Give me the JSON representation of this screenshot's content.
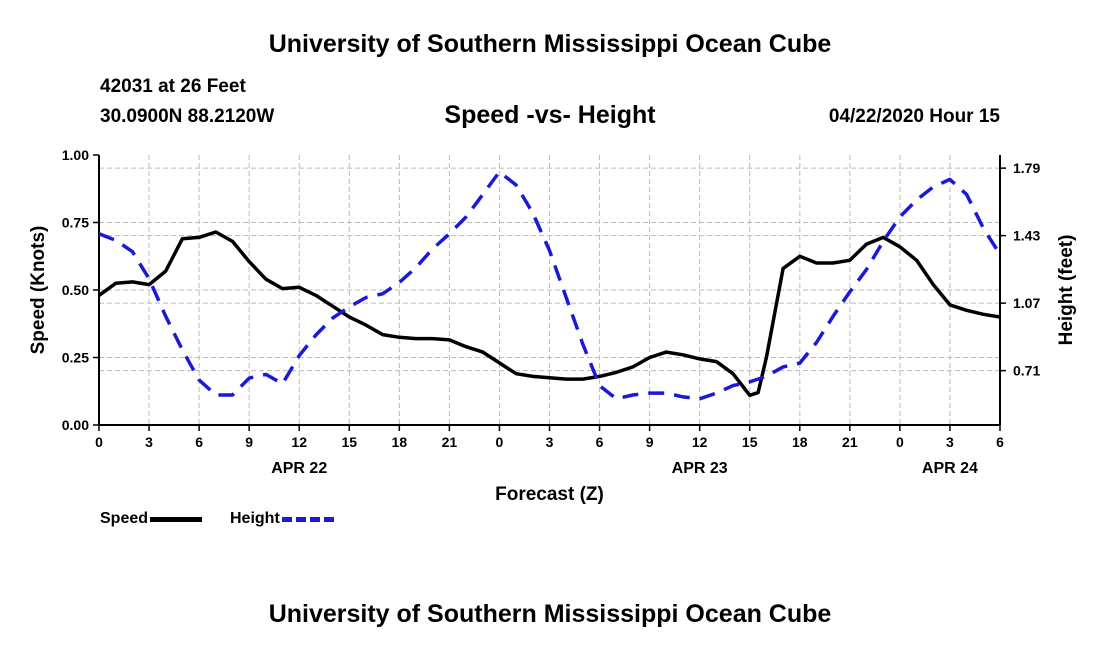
{
  "header": {
    "title": "University of Southern Mississippi Ocean Cube",
    "station": "42031 at 26 Feet",
    "coords": "30.0900N 88.2120W",
    "subtitle": "Speed -vs- Height",
    "datetime": "04/22/2020 Hour 15"
  },
  "footer": {
    "title": "University of Southern Mississippi Ocean Cube"
  },
  "legend": {
    "speed_label": "Speed",
    "height_label": "Height"
  },
  "colors": {
    "speed": "#000000",
    "height": "#1a1ad6",
    "grid": "#bbbbbb"
  },
  "chart_data": {
    "type": "line",
    "title": "Speed -vs- Height",
    "xlabel": "Forecast (Z)",
    "ylabel": "Speed (Knots)",
    "y2label": "Height (feet)",
    "xlim": [
      0,
      54
    ],
    "ylim": [
      0,
      1.0
    ],
    "y2lim": [
      0.42,
      1.86
    ],
    "x_ticks": [
      0,
      3,
      6,
      9,
      12,
      15,
      18,
      21,
      24,
      27,
      30,
      33,
      36,
      39,
      42,
      45,
      48,
      51,
      54
    ],
    "x_tick_labels": [
      "0",
      "3",
      "6",
      "9",
      "12",
      "15",
      "18",
      "21",
      "0",
      "3",
      "6",
      "9",
      "12",
      "15",
      "18",
      "21",
      "0",
      "3",
      "6"
    ],
    "date_labels": [
      {
        "x": 12,
        "label": "APR 22"
      },
      {
        "x": 36,
        "label": "APR 23"
      },
      {
        "x": 51,
        "label": "APR 24"
      }
    ],
    "y_ticks": [
      0.0,
      0.25,
      0.5,
      0.75,
      1.0
    ],
    "y_tick_labels": [
      "0.00",
      "0.25",
      "0.50",
      "0.75",
      "1.00"
    ],
    "y2_ticks": [
      0.71,
      1.07,
      1.43,
      1.79
    ],
    "y2_tick_labels": [
      "0.71",
      "1.07",
      "1.43",
      "1.79"
    ],
    "grid": true,
    "series": [
      {
        "name": "Speed",
        "axis": "left",
        "x": [
          0,
          1,
          2,
          3,
          4,
          5,
          6,
          7,
          8,
          9,
          10,
          11,
          12,
          13,
          14,
          15,
          16,
          17,
          18,
          19,
          20,
          21,
          22,
          23,
          24,
          25,
          26,
          27,
          28,
          29,
          30,
          31,
          32,
          33,
          34,
          35,
          36,
          37,
          38,
          38.5,
          39,
          39.5,
          40,
          41,
          42,
          43,
          44,
          45,
          46,
          47,
          48,
          49,
          50,
          51,
          52,
          53,
          54
        ],
        "values": [
          0.48,
          0.525,
          0.53,
          0.52,
          0.57,
          0.69,
          0.695,
          0.715,
          0.68,
          0.605,
          0.54,
          0.505,
          0.51,
          0.48,
          0.44,
          0.4,
          0.37,
          0.335,
          0.325,
          0.32,
          0.32,
          0.315,
          0.29,
          0.27,
          0.23,
          0.19,
          0.18,
          0.175,
          0.17,
          0.17,
          0.18,
          0.195,
          0.215,
          0.25,
          0.27,
          0.26,
          0.245,
          0.235,
          0.19,
          0.15,
          0.11,
          0.12,
          0.25,
          0.58,
          0.625,
          0.6,
          0.6,
          0.61,
          0.67,
          0.695,
          0.66,
          0.61,
          0.52,
          0.445,
          0.425,
          0.41,
          0.4
        ]
      },
      {
        "name": "Height",
        "axis": "right",
        "x": [
          0,
          1,
          2,
          3,
          4,
          5,
          6,
          7,
          8,
          9,
          10,
          11,
          12,
          13,
          14,
          15,
          16,
          17,
          18,
          19,
          20,
          21,
          22,
          23,
          24,
          25,
          26,
          27,
          28,
          29,
          30,
          31,
          32,
          33,
          34,
          35,
          36,
          37,
          38,
          39,
          40,
          41,
          42,
          43,
          44,
          45,
          46,
          47,
          48,
          49,
          50,
          51,
          52,
          53,
          54
        ],
        "values": [
          1.44,
          1.405,
          1.345,
          1.2,
          1.0,
          0.82,
          0.66,
          0.58,
          0.58,
          0.67,
          0.69,
          0.64,
          0.79,
          0.9,
          0.99,
          1.05,
          1.1,
          1.12,
          1.18,
          1.26,
          1.36,
          1.44,
          1.53,
          1.65,
          1.77,
          1.7,
          1.55,
          1.35,
          1.1,
          0.85,
          0.63,
          0.56,
          0.58,
          0.59,
          0.59,
          0.57,
          0.56,
          0.59,
          0.63,
          0.65,
          0.68,
          0.73,
          0.75,
          0.86,
          1.0,
          1.13,
          1.25,
          1.4,
          1.53,
          1.62,
          1.69,
          1.73,
          1.65,
          1.47,
          1.33
        ]
      }
    ]
  }
}
